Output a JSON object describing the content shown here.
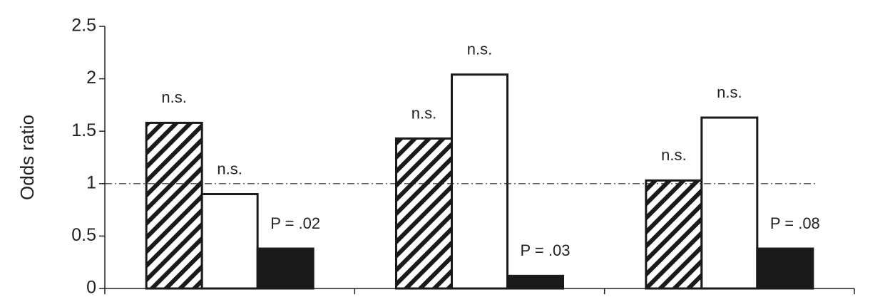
{
  "chart_data": {
    "type": "bar",
    "y_label": "Odds ratio",
    "categories": [
      null,
      null,
      null
    ],
    "series": [
      {
        "color": "#1a1a1a",
        "pattern": "hatch",
        "values": [
          1.58,
          1.43,
          1.03
        ],
        "value_labels": [
          "n.s.",
          "n.s.",
          "n.s."
        ]
      },
      {
        "color": "#ffffff",
        "pattern": "solid",
        "values": [
          0.9,
          2.04,
          1.63
        ],
        "value_labels": [
          "n.s.",
          "n.s.",
          "n.s."
        ]
      },
      {
        "color": "#1a1a1a",
        "pattern": "solid",
        "values": [
          0.38,
          0.12,
          0.38
        ],
        "value_labels": [
          "P = .02",
          "P = .03",
          "P = .08"
        ]
      }
    ],
    "reference_line": 1,
    "ylim": [
      0,
      2.5
    ],
    "yticks": [
      0,
      0.5,
      1,
      1.5,
      2,
      2.5
    ],
    "grid": false
  }
}
